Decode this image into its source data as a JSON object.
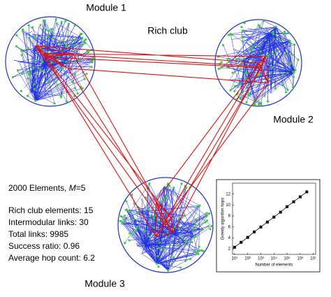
{
  "labels": {
    "module1": "Module 1",
    "module2": "Module 2",
    "module3": "Module 3",
    "rich_club": "Rich club"
  },
  "summary": {
    "head": "2000 Elements, ",
    "param": "M",
    "param_value": "=5"
  },
  "stats": [
    "Rich club elements: 15",
    "Intermodular links: 30",
    "Total  links: 9985",
    "Success ratio: 0.96",
    "Average hop count: 6.2"
  ],
  "chart_data": {
    "type": "line",
    "xlabel": "Number of elements",
    "ylabel": "Greedy algorithm hops",
    "log_x": true,
    "color": "#000000",
    "x": [
      10,
      31.6,
      100,
      316,
      1000,
      3162,
      10000,
      31623,
      100000,
      316228,
      1000000,
      3162278
    ],
    "values": [
      2.3,
      3.2,
      4.1,
      5.1,
      6.0,
      6.9,
      7.8,
      8.7,
      9.7,
      10.6,
      11.5,
      12.4
    ],
    "xlim": [
      7,
      15000000
    ],
    "xticks": [
      {
        "value": 10,
        "label": "10¹"
      },
      {
        "value": 100,
        "label": "10²"
      },
      {
        "value": 1000,
        "label": "10³"
      },
      {
        "value": 10000,
        "label": "10⁴"
      },
      {
        "value": 100000,
        "label": "10⁵"
      },
      {
        "value": 1000000,
        "label": "10⁶"
      },
      {
        "value": 10000000,
        "label": "10⁷"
      }
    ],
    "ylim": [
      1,
      14
    ],
    "yticks": [
      2,
      4,
      6,
      8,
      10,
      12
    ]
  }
}
